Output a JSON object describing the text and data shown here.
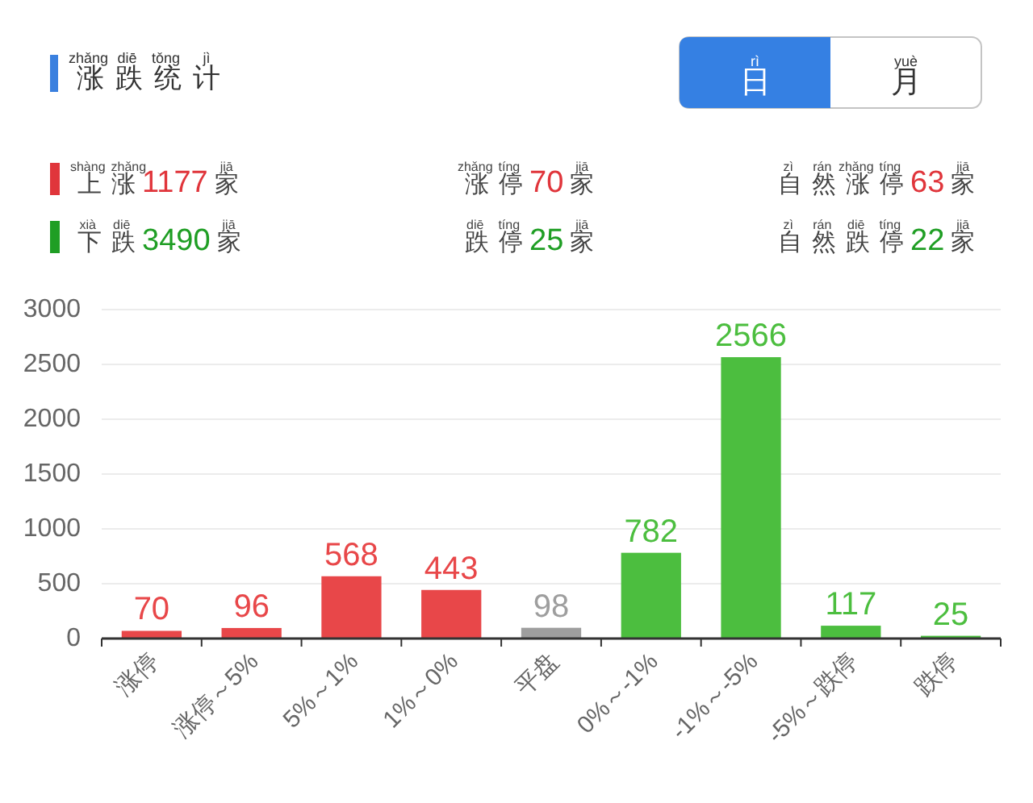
{
  "chart_data": [
    {
      "type": "other",
      "annotations": [
        "zhǎng diē tǒng jì",
        "涨跌统计",
        "rì",
        "日",
        "yuè",
        "月",
        "shàng zhǎng jiā",
        "上涨1177家",
        "zhǎng tíng jiā",
        "涨停70家",
        "zì rán zhǎng tíng jiā",
        "自然涨停63家",
        "xià diē jiā",
        "下跌3490家",
        "diē tíng jiā",
        "跌停25家",
        "zì rán diē tíng jiā",
        "自然跌停22家"
      ],
      "colors": [
        "#e0353b",
        "#1f9e24"
      ]
    },
    {
      "type": "bar",
      "categories": [
        "涨停",
        "涨停～5%",
        "5%～1%",
        "1%～0%",
        "平盘",
        "0%～-1%",
        "-1%～-5%",
        "-5%～跌停",
        "跌停"
      ],
      "values": [
        70,
        96,
        568,
        443,
        98,
        782,
        2566,
        117,
        25
      ],
      "colors": [
        "#e84749",
        "#e84749",
        "#e84749",
        "#e84749",
        "#9e9e9e",
        "#4cbe3f",
        "#4cbe3f",
        "#4cbe3f",
        "#4cbe3f"
      ],
      "ylim": [
        0,
        3000
      ],
      "yticks": [
        0,
        500,
        1000,
        1500,
        2000,
        2500,
        3000
      ],
      "grid": "y",
      "data_labels": true
    }
  ]
}
